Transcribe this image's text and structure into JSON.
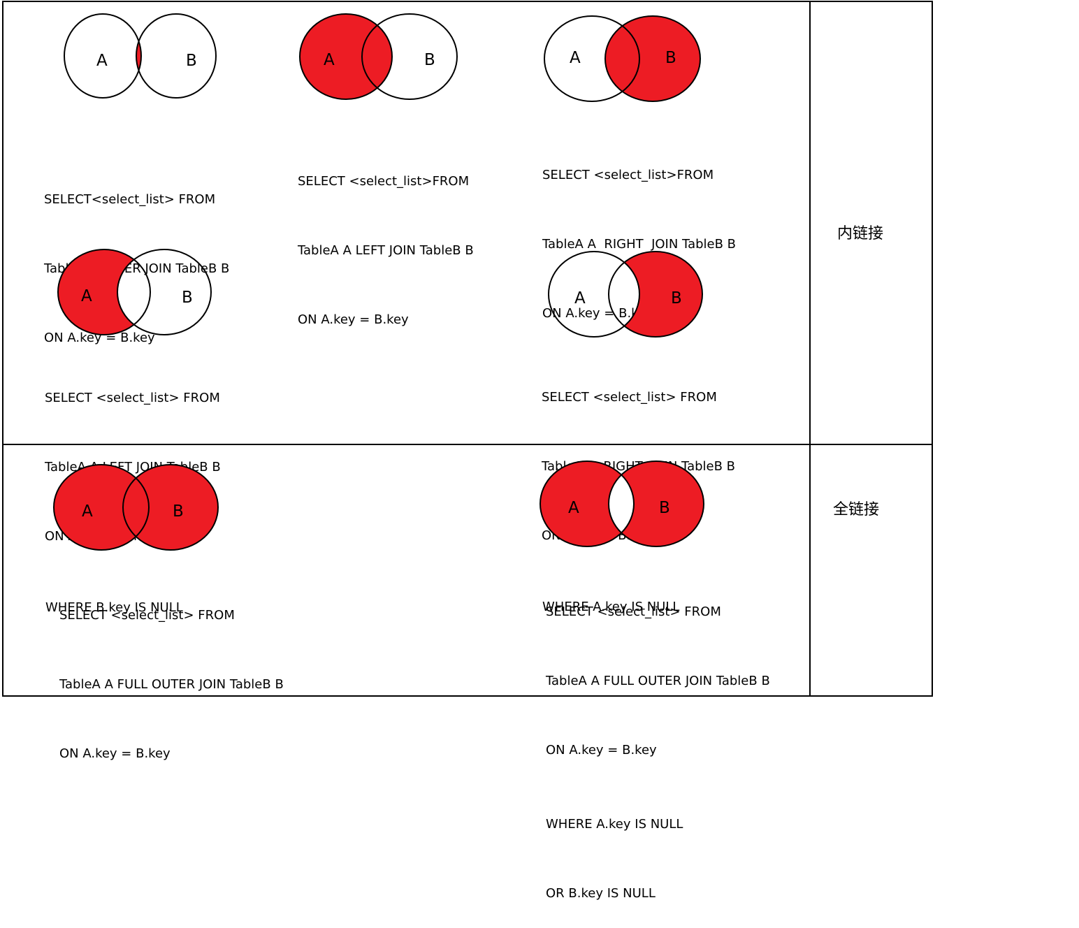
{
  "fill_color": "#ed1c24",
  "set_a_label": "A",
  "set_b_label": "B",
  "sections": {
    "inner": "内链接",
    "full": "全链接"
  },
  "diagrams": [
    {
      "fill": "intersection",
      "lines": [
        "SELECT<select_list> FROM",
        "TableA A INNER JOIN TableB B",
        "ON A.key = B.key"
      ]
    },
    {
      "fill": "a-full",
      "lines": [
        "SELECT <select_list>FROM",
        "TableA A LEFT JOIN TableB B",
        "ON A.key = B.key"
      ]
    },
    {
      "fill": "b-full",
      "lines": [
        "SELECT <select_list>FROM",
        "TableA A  RIGHT  JOIN TableB B",
        "ON A.key = B.key"
      ]
    },
    {
      "fill": "a-only",
      "lines": [
        "SELECT <select_list> FROM",
        "TableA A LEFT JOIN TableB B",
        "ON A.key = B.key",
        "WHERE B.key IS NULL"
      ]
    },
    {
      "fill": "b-only",
      "lines": [
        "SELECT <select_list> FROM",
        "TableA A  RIGHT  JOIN TableB B",
        "ON A.key = B.key",
        "WHERE A.key IS NULL"
      ]
    },
    {
      "fill": "both-full",
      "lines": [
        "SELECT <select_list> FROM",
        "TableA A FULL OUTER JOIN TableB B",
        "ON A.key = B.key"
      ]
    },
    {
      "fill": "symmetric-difference",
      "lines": [
        "SELECT <select_list> FROM",
        "TableA A FULL OUTER JOIN TableB B",
        "ON A.key = B.key",
        "WHERE A.key IS NULL",
        "OR B.key IS NULL"
      ]
    }
  ]
}
